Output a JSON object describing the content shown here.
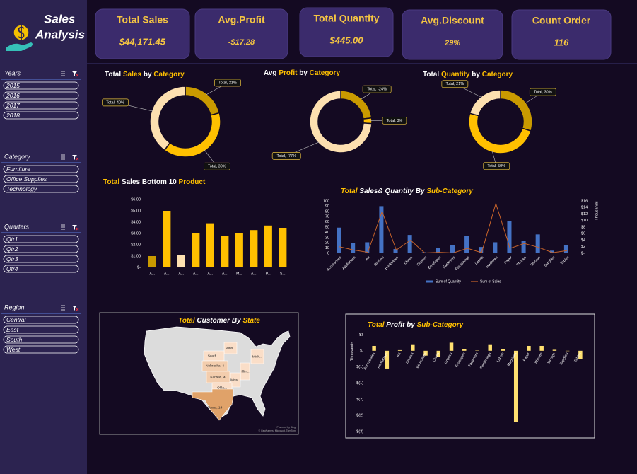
{
  "header": {
    "title_line1": "Sales",
    "title_line2": "Analysis"
  },
  "kpis": [
    {
      "label": "Total Sales",
      "value": "$44,171.45"
    },
    {
      "label": "Avg.Profit",
      "value": "-$17.28"
    },
    {
      "label": "Total Quantity",
      "value": "$445.00"
    },
    {
      "label": "Avg.Discount",
      "value": "29%"
    },
    {
      "label": "Count Order",
      "value": "116"
    }
  ],
  "slicers": [
    {
      "title": "Years",
      "items": [
        "2015",
        "2016",
        "2017",
        "2018"
      ]
    },
    {
      "title": "Category",
      "items": [
        "Furniture",
        "Office Supplies",
        "Technology"
      ]
    },
    {
      "title": "Quarters",
      "items": [
        "Qtr1",
        "Qtr2",
        "Qtr3",
        "Qtr4"
      ]
    },
    {
      "title": "Region",
      "items": [
        "Central",
        "East",
        "South",
        "West"
      ]
    }
  ],
  "chart_data": [
    {
      "type": "donut",
      "title": [
        {
          "text": "Total"
        },
        {
          "text": "Sales",
          "color": "#ffc000"
        },
        {
          "text": "by"
        },
        {
          "text": "Category",
          "color": "#ffc000"
        }
      ],
      "values": [
        21,
        39,
        40
      ],
      "value_labels": [
        "Total, 21%",
        "Total, 39%",
        "Total, 40%"
      ],
      "colors": [
        "#c99a00",
        "#ffc000",
        "#fde0b0"
      ]
    },
    {
      "type": "donut",
      "title": [
        {
          "text": "Avg"
        },
        {
          "text": "Profit",
          "color": "#ffc000"
        },
        {
          "text": "by"
        },
        {
          "text": "Category",
          "color": "#ffc000"
        }
      ],
      "values": [
        -24,
        3,
        -77
      ],
      "value_labels": [
        "Total, -24%",
        "Total, 3%",
        "Total, -77%"
      ],
      "colors": [
        "#c99a00",
        "#ffc000",
        "#fde0b0"
      ]
    },
    {
      "type": "donut",
      "title": [
        {
          "text": "Total"
        },
        {
          "text": "Quantity",
          "color": "#ffc000"
        },
        {
          "text": "by"
        },
        {
          "text": "Category",
          "color": "#ffc000"
        }
      ],
      "values": [
        30,
        50,
        21
      ],
      "value_labels": [
        "Total, 30%",
        "Total, 50%",
        "Total, 21%"
      ],
      "colors": [
        "#c99a00",
        "#ffc000",
        "#fde0b0"
      ]
    },
    {
      "type": "bar",
      "title": [
        {
          "text": "Total",
          "color": "#ffc000"
        },
        {
          "text": "Sales Bottom 10"
        },
        {
          "text": "Product",
          "color": "#ffc000"
        }
      ],
      "categories": [
        "A...",
        "A...",
        "A...",
        "A...",
        "A...",
        "A...",
        "M...",
        "A...",
        "P...",
        "S..."
      ],
      "values": [
        1.0,
        5.0,
        1.1,
        3.0,
        3.9,
        2.8,
        3.0,
        3.3,
        3.7,
        3.5
      ],
      "colors": [
        "#c99a00",
        "#ffc000",
        "#fde0b0",
        "#ffc000",
        "#ffc000",
        "#ffc000",
        "#ffc000",
        "#ffc000",
        "#ffc000",
        "#ffc000"
      ],
      "ylim": [
        0,
        6
      ],
      "yticks": [
        {
          "value": 0,
          "label": "$-"
        },
        {
          "value": 1,
          "label": "$1.00"
        },
        {
          "value": 2,
          "label": "$2.00"
        },
        {
          "value": 3,
          "label": "$3.00"
        },
        {
          "value": 4,
          "label": "$4.00"
        },
        {
          "value": 5,
          "label": "$5.00"
        },
        {
          "value": 6,
          "label": "$6.00"
        }
      ]
    },
    {
      "type": "combo",
      "title": [
        {
          "text": "Total",
          "color": "#ffc000"
        },
        {
          "text": "Sales& Quantity By"
        },
        {
          "text": "Sub-Category",
          "color": "#ffc000"
        }
      ],
      "categories": [
        "Accessories",
        "Appliances",
        "Art",
        "Binders",
        "Bookcases",
        "Chairs",
        "Copiers",
        "Envelopes",
        "Fasteners",
        "Furnishings",
        "Labels",
        "Machines",
        "Paper",
        "Phones",
        "Storage",
        "Supplies",
        "Tables"
      ],
      "series": [
        {
          "name": "Sum of Quantity",
          "color": "#4472c4",
          "values": [
            49,
            20,
            21,
            90,
            8,
            35,
            2,
            10,
            15,
            33,
            12,
            21,
            62,
            24,
            36,
            5,
            15
          ]
        },
        {
          "name": "Sum of Sales",
          "color": "#c5622a",
          "axis": "y2",
          "values": [
            2,
            1,
            0.3,
            12.8,
            1,
            4,
            0.1,
            0.3,
            0.1,
            1.5,
            0.2,
            15.2,
            1.5,
            3,
            1.8,
            0.2,
            0.8
          ]
        }
      ],
      "ylim": [
        0,
        100
      ],
      "yticks": [
        0,
        10,
        20,
        30,
        40,
        50,
        60,
        70,
        80,
        90,
        100
      ],
      "y2lim": [
        0,
        16
      ],
      "y2ticks": [
        {
          "value": 0,
          "label": "$-"
        },
        {
          "value": 2,
          "label": "$2"
        },
        {
          "value": 4,
          "label": "$4"
        },
        {
          "value": 6,
          "label": "$6"
        },
        {
          "value": 8,
          "label": "$8"
        },
        {
          "value": 10,
          "label": "$10"
        },
        {
          "value": 12,
          "label": "$12"
        },
        {
          "value": 14,
          "label": "$14"
        },
        {
          "value": 16,
          "label": "$16"
        }
      ],
      "y2label": "Thousands"
    },
    {
      "type": "map",
      "title": [
        {
          "text": "Total",
          "color": "#ffc000"
        },
        {
          "text": "Customer By"
        },
        {
          "text": "State",
          "color": "#ffc000"
        }
      ],
      "regions": [
        {
          "label": "Minn..."
        },
        {
          "label": "South..."
        },
        {
          "label": "Nebraska, 4",
          "value": 4
        },
        {
          "label": "Illin..."
        },
        {
          "label": "Kansas, 4",
          "value": 4
        },
        {
          "label": "Miss..."
        },
        {
          "label": "Okla..."
        },
        {
          "label": "Texas, 14",
          "value": 14
        },
        {
          "label": "Mich..."
        }
      ],
      "credits": [
        "Powered by Bing",
        "© GeoNames, Microsoft, TomTom"
      ]
    },
    {
      "type": "bar",
      "title": [
        {
          "text": "Total",
          "color": "#ffc000"
        },
        {
          "text": "Profit by"
        },
        {
          "text": "Sub-Category",
          "color": "#ffc000"
        }
      ],
      "categories": [
        "Accessories",
        "Appliances",
        "Art",
        "Binders",
        "Bookcases",
        "Chairs",
        "Copiers",
        "Envelopes",
        "Fasteners",
        "Furnishings",
        "Labels",
        "Machines",
        "Paper",
        "Phones",
        "Storage",
        "Supplies",
        "Tables"
      ],
      "values": [
        0.15,
        -0.55,
        0.02,
        0.2,
        -0.15,
        -0.2,
        0.25,
        0.05,
        0.01,
        0.2,
        0.05,
        -2.2,
        0.15,
        0.15,
        0.03,
        -0.01,
        -0.25
      ],
      "color": "#ffe070",
      "ylim": [
        -2.5,
        0.5
      ],
      "yticks": [
        {
          "value": 0.5,
          "label": "$1"
        },
        {
          "value": 0,
          "label": "$-"
        },
        {
          "value": -0.5,
          "label": "$(1)"
        },
        {
          "value": -1,
          "label": "$(1)"
        },
        {
          "value": -1.5,
          "label": "$(2)"
        },
        {
          "value": -2,
          "label": "$(2)"
        },
        {
          "value": -2.5,
          "label": "$(3)"
        }
      ],
      "ylabel": "Thousands"
    }
  ]
}
